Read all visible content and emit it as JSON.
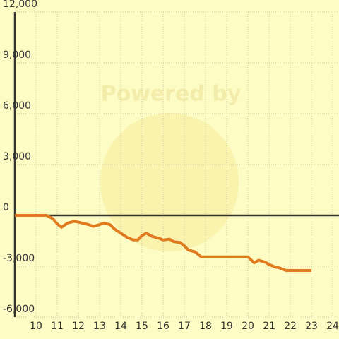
{
  "chart_data": {
    "type": "line",
    "annotation": "Powered by",
    "x": [
      9,
      10.5,
      10.8,
      11,
      11.2,
      11.5,
      11.8,
      12,
      12.5,
      12.7,
      13,
      13.2,
      13.5,
      13.7,
      14,
      14.3,
      14.6,
      14.8,
      15,
      15.2,
      15.5,
      15.8,
      16,
      16.3,
      16.5,
      16.8,
      17,
      17.2,
      17.5,
      17.8,
      18,
      18.5,
      19,
      19.5,
      20,
      20.3,
      20.5,
      20.8,
      21,
      21.3,
      21.5,
      21.8,
      22,
      22.5,
      23
    ],
    "series": [
      {
        "color": "#e07a1f",
        "values": [
          0,
          0,
          -200,
          -500,
          -700,
          -450,
          -350,
          -400,
          -550,
          -650,
          -550,
          -450,
          -550,
          -800,
          -1050,
          -1300,
          -1450,
          -1450,
          -1200,
          -1050,
          -1250,
          -1350,
          -1450,
          -1400,
          -1550,
          -1600,
          -1800,
          -2050,
          -2150,
          -2450,
          -2450,
          -2450,
          -2450,
          -2450,
          -2450,
          -2800,
          -2650,
          -2750,
          -2900,
          -3050,
          -3100,
          -3250,
          -3250,
          -3250,
          -3250
        ]
      }
    ],
    "xlim": [
      9,
      24.3
    ],
    "xticks": [
      10,
      11,
      12,
      13,
      14,
      15,
      16,
      17,
      18,
      19,
      20,
      21,
      22,
      23,
      24
    ],
    "ylim": [
      -6000,
      12000
    ],
    "yticks": [
      {
        "value": -6000,
        "label": "-6,000"
      },
      {
        "value": -3000,
        "label": "-3,000"
      },
      0,
      {
        "value": 3000,
        "label": "3,000"
      },
      {
        "value": 6000,
        "label": "6,000"
      },
      {
        "value": 9000,
        "label": "9,000"
      },
      {
        "value": 12000,
        "label": "12,000"
      }
    ],
    "grid": true
  }
}
